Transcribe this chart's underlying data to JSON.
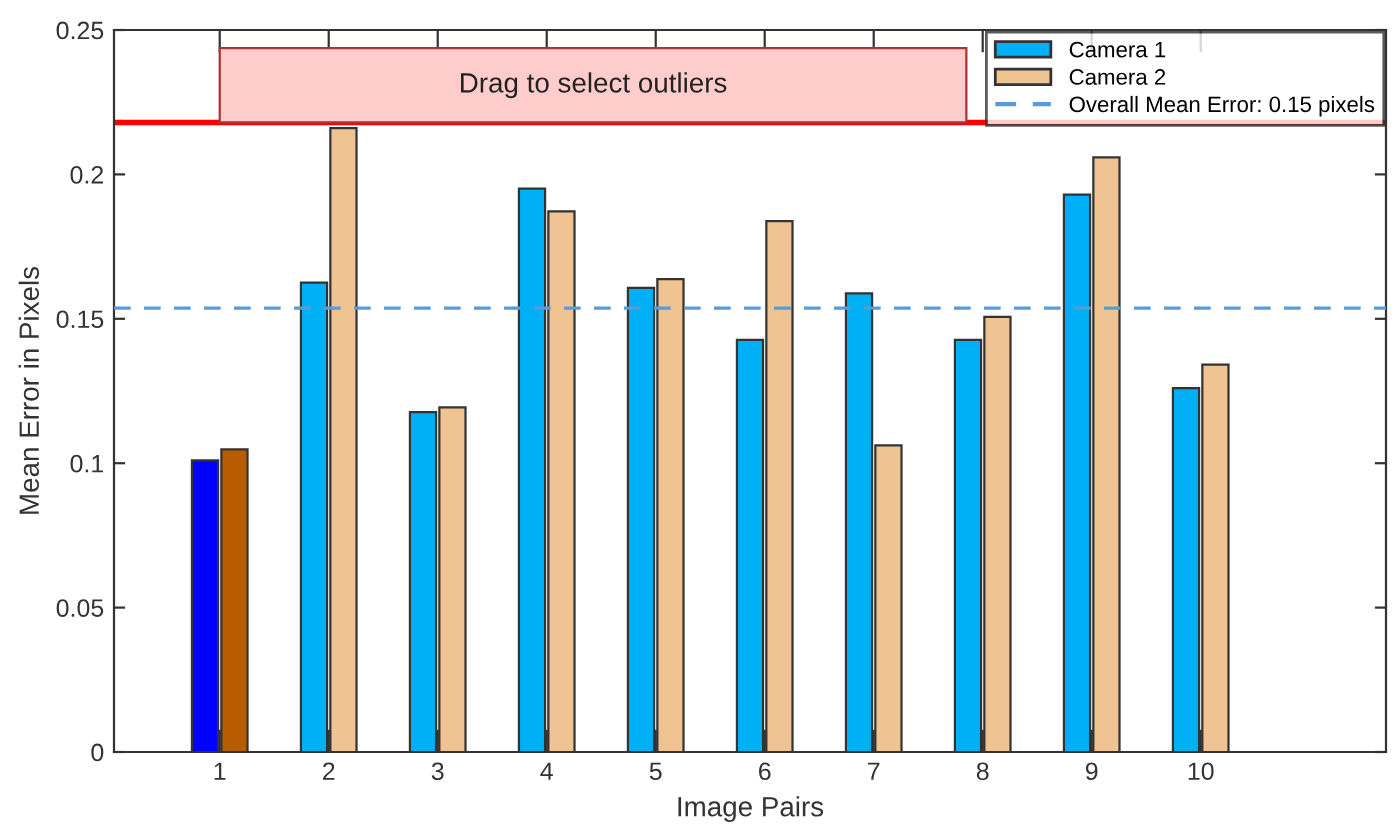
{
  "chart_data": {
    "type": "bar",
    "xlabel": "Image Pairs",
    "ylabel": "Mean Error in Pixels",
    "categories": [
      "1",
      "2",
      "3",
      "4",
      "5",
      "6",
      "7",
      "8",
      "9",
      "10"
    ],
    "series": [
      {
        "name": "Camera 1",
        "color": "#00b0f6",
        "colors": [
          "#0000ff",
          "#00b0f6",
          "#00b0f6",
          "#00b0f6",
          "#00b0f6",
          "#00b0f6",
          "#00b0f6",
          "#00b0f6",
          "#00b0f6",
          "#00b0f6"
        ],
        "values": [
          0.101,
          0.1625,
          0.1177,
          0.1951,
          0.1607,
          0.1427,
          0.1588,
          0.1427,
          0.193,
          0.126
        ]
      },
      {
        "name": "Camera 2",
        "color": "#f0c492",
        "colors": [
          "#b85c00",
          "#f0c492",
          "#f0c492",
          "#f0c492",
          "#f0c492",
          "#f0c492",
          "#f0c492",
          "#f0c492",
          "#f0c492",
          "#f0c492"
        ],
        "values": [
          0.1048,
          0.216,
          0.1193,
          0.1872,
          0.1637,
          0.1838,
          0.1062,
          0.1507,
          0.2059,
          0.1341
        ]
      }
    ],
    "ylim": [
      0,
      0.25
    ],
    "yticks": [
      0,
      0.05,
      0.1,
      0.15,
      0.2,
      0.25
    ],
    "ref_lines": [
      {
        "axis": "y",
        "value": 0.1537,
        "label": "Overall Mean Error: 0.15 pixels",
        "color": "#5b9bd5",
        "line_style": "dashed"
      },
      {
        "axis": "y",
        "value": 0.218,
        "label": null,
        "color": "#ff0000",
        "line_style": "solid"
      }
    ],
    "annotations": [
      "Drag to select outliers"
    ],
    "legend": "top right",
    "grid": false
  }
}
